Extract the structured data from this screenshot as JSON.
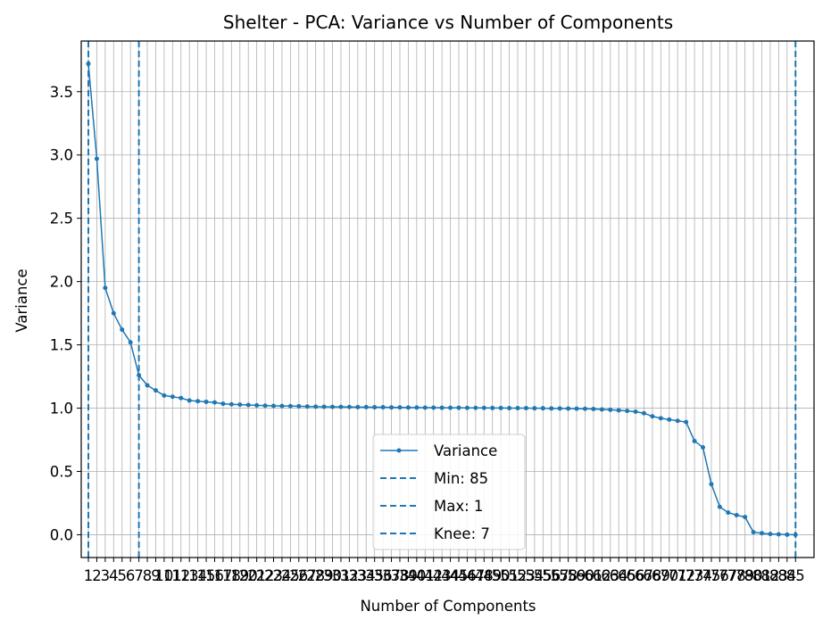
{
  "chart_data": {
    "type": "line",
    "title": "Shelter - PCA: Variance vs Number of Components",
    "xlabel": "Number of Components",
    "ylabel": "Variance",
    "xlim": [
      0.15,
      87.2
    ],
    "ylim": [
      -0.18,
      3.9
    ],
    "grid": true,
    "legend_position": "lower-center",
    "yticks": [
      0.0,
      0.5,
      1.0,
      1.5,
      2.0,
      2.5,
      3.0,
      3.5
    ],
    "ytick_labels": [
      "0.0",
      "0.5",
      "1.0",
      "1.5",
      "2.0",
      "2.5",
      "3.0",
      "3.5"
    ],
    "x": [
      1,
      2,
      3,
      4,
      5,
      6,
      7,
      8,
      9,
      10,
      11,
      12,
      13,
      14,
      15,
      16,
      17,
      18,
      19,
      20,
      21,
      22,
      23,
      24,
      25,
      26,
      27,
      28,
      29,
      30,
      31,
      32,
      33,
      34,
      35,
      36,
      37,
      38,
      39,
      40,
      41,
      42,
      43,
      44,
      45,
      46,
      47,
      48,
      49,
      50,
      51,
      52,
      53,
      54,
      55,
      56,
      57,
      58,
      59,
      60,
      61,
      62,
      63,
      64,
      65,
      66,
      67,
      68,
      69,
      70,
      71,
      72,
      73,
      74,
      75,
      76,
      77,
      78,
      79,
      80,
      81,
      82,
      83,
      84,
      85
    ],
    "series": [
      {
        "name": "Variance",
        "color": "#1f77b4",
        "values": [
          3.72,
          2.97,
          1.95,
          1.75,
          1.62,
          1.52,
          1.26,
          1.18,
          1.14,
          1.1,
          1.09,
          1.08,
          1.06,
          1.055,
          1.05,
          1.045,
          1.035,
          1.03,
          1.028,
          1.025,
          1.022,
          1.02,
          1.018,
          1.017,
          1.016,
          1.015,
          1.013,
          1.012,
          1.011,
          1.01,
          1.01,
          1.009,
          1.008,
          1.008,
          1.007,
          1.007,
          1.006,
          1.006,
          1.005,
          1.005,
          1.004,
          1.004,
          1.003,
          1.003,
          1.003,
          1.002,
          1.002,
          1.002,
          1.001,
          1.001,
          1.0,
          1.0,
          1.0,
          0.999,
          0.999,
          0.998,
          0.998,
          0.997,
          0.996,
          0.995,
          0.993,
          0.99,
          0.987,
          0.983,
          0.978,
          0.972,
          0.96,
          0.935,
          0.92,
          0.91,
          0.9,
          0.89,
          0.74,
          0.69,
          0.4,
          0.22,
          0.175,
          0.155,
          0.14,
          0.02,
          0.012,
          0.006,
          0.003,
          0.001,
          0.0
        ]
      }
    ],
    "vlines": [
      {
        "label": "Min: 85",
        "x": 85,
        "color": "#1f77b4"
      },
      {
        "label": "Max: 1",
        "x": 1,
        "color": "#1f77b4"
      },
      {
        "label": "Knee: 7",
        "x": 7,
        "color": "#1f77b4"
      }
    ]
  }
}
